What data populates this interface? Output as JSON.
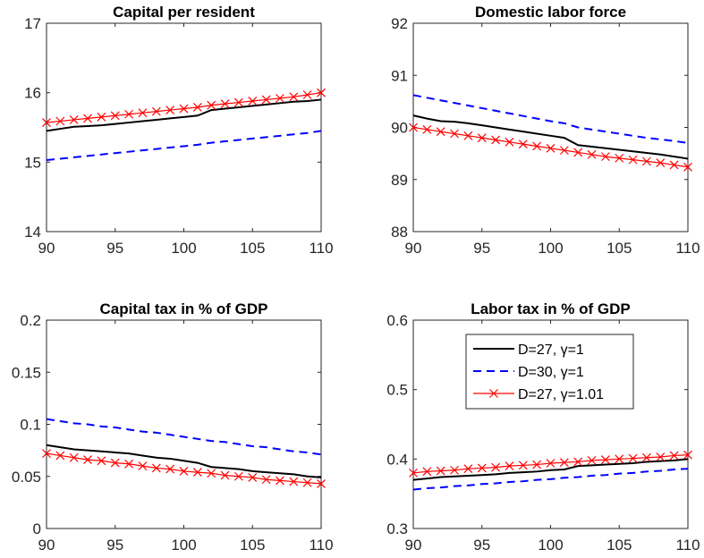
{
  "chart_data": [
    {
      "type": "line",
      "title": "Capital per resident",
      "x": [
        90,
        91,
        92,
        93,
        94,
        95,
        96,
        97,
        98,
        99,
        100,
        101,
        102,
        103,
        104,
        105,
        106,
        107,
        108,
        109,
        110
      ],
      "xlim": [
        90,
        110
      ],
      "xticks": [
        90,
        95,
        100,
        105,
        110
      ],
      "ylim": [
        14,
        17
      ],
      "yticks": [
        14,
        15,
        16,
        17
      ],
      "series": [
        {
          "name": "D=27, γ=1",
          "values": [
            15.45,
            15.48,
            15.51,
            15.52,
            15.53,
            15.55,
            15.57,
            15.59,
            15.61,
            15.63,
            15.65,
            15.67,
            15.75,
            15.77,
            15.79,
            15.81,
            15.83,
            15.85,
            15.87,
            15.88,
            15.9
          ]
        },
        {
          "name": "D=30, γ=1",
          "values": [
            15.03,
            15.05,
            15.07,
            15.09,
            15.11,
            15.13,
            15.15,
            15.17,
            15.19,
            15.21,
            15.23,
            15.25,
            15.28,
            15.3,
            15.32,
            15.34,
            15.36,
            15.38,
            15.4,
            15.42,
            15.45
          ]
        },
        {
          "name": "D=27, γ=1.01",
          "values": [
            15.57,
            15.59,
            15.61,
            15.63,
            15.65,
            15.67,
            15.69,
            15.71,
            15.73,
            15.75,
            15.77,
            15.79,
            15.82,
            15.84,
            15.86,
            15.88,
            15.9,
            15.92,
            15.94,
            15.97,
            16.0
          ]
        }
      ]
    },
    {
      "type": "line",
      "title": "Domestic labor force",
      "x": [
        90,
        91,
        92,
        93,
        94,
        95,
        96,
        97,
        98,
        99,
        100,
        101,
        102,
        103,
        104,
        105,
        106,
        107,
        108,
        109,
        110
      ],
      "xlim": [
        90,
        110
      ],
      "xticks": [
        90,
        95,
        100,
        105,
        110
      ],
      "ylim": [
        88,
        92
      ],
      "yticks": [
        88,
        89,
        90,
        91,
        92
      ],
      "series": [
        {
          "name": "D=27, γ=1",
          "values": [
            90.23,
            90.17,
            90.12,
            90.11,
            90.08,
            90.04,
            90.0,
            89.96,
            89.92,
            89.88,
            89.84,
            89.8,
            89.66,
            89.63,
            89.6,
            89.57,
            89.54,
            89.51,
            89.48,
            89.44,
            89.4
          ]
        },
        {
          "name": "D=30, γ=1",
          "values": [
            90.62,
            90.57,
            90.52,
            90.47,
            90.42,
            90.37,
            90.32,
            90.27,
            90.22,
            90.17,
            90.12,
            90.08,
            90.0,
            89.96,
            89.92,
            89.88,
            89.84,
            89.8,
            89.77,
            89.74,
            89.7
          ]
        },
        {
          "name": "D=27, γ=1.01",
          "values": [
            90.0,
            89.96,
            89.92,
            89.88,
            89.84,
            89.8,
            89.76,
            89.72,
            89.68,
            89.64,
            89.6,
            89.56,
            89.52,
            89.48,
            89.44,
            89.41,
            89.38,
            89.35,
            89.32,
            89.28,
            89.24
          ]
        }
      ]
    },
    {
      "type": "line",
      "title": "Capital tax in % of GDP",
      "x": [
        90,
        91,
        92,
        93,
        94,
        95,
        96,
        97,
        98,
        99,
        100,
        101,
        102,
        103,
        104,
        105,
        106,
        107,
        108,
        109,
        110
      ],
      "xlim": [
        90,
        110
      ],
      "xticks": [
        90,
        95,
        100,
        105,
        110
      ],
      "ylim": [
        0,
        0.2
      ],
      "yticks": [
        0,
        0.05,
        0.1,
        0.15,
        0.2
      ],
      "series": [
        {
          "name": "D=27, γ=1",
          "values": [
            0.08,
            0.078,
            0.076,
            0.075,
            0.074,
            0.073,
            0.072,
            0.07,
            0.068,
            0.067,
            0.065,
            0.063,
            0.059,
            0.058,
            0.057,
            0.055,
            0.054,
            0.053,
            0.052,
            0.05,
            0.049
          ]
        },
        {
          "name": "D=30, γ=1",
          "values": [
            0.105,
            0.103,
            0.101,
            0.1,
            0.098,
            0.097,
            0.095,
            0.093,
            0.092,
            0.09,
            0.088,
            0.086,
            0.084,
            0.083,
            0.081,
            0.079,
            0.078,
            0.076,
            0.074,
            0.073,
            0.071
          ]
        },
        {
          "name": "D=27, γ=1.01",
          "values": [
            0.072,
            0.07,
            0.068,
            0.066,
            0.065,
            0.063,
            0.062,
            0.06,
            0.058,
            0.057,
            0.055,
            0.054,
            0.053,
            0.051,
            0.05,
            0.049,
            0.047,
            0.046,
            0.045,
            0.044,
            0.043
          ]
        }
      ]
    },
    {
      "type": "line",
      "title": "Labor tax in % of GDP",
      "x": [
        90,
        91,
        92,
        93,
        94,
        95,
        96,
        97,
        98,
        99,
        100,
        101,
        102,
        103,
        104,
        105,
        106,
        107,
        108,
        109,
        110
      ],
      "xlim": [
        90,
        110
      ],
      "xticks": [
        90,
        95,
        100,
        105,
        110
      ],
      "ylim": [
        0.3,
        0.6
      ],
      "yticks": [
        0.3,
        0.4,
        0.5,
        0.6
      ],
      "legend": {
        "placement": "top-center",
        "entries": [
          "D=27, γ=1",
          "D=30, γ=1",
          "D=27, γ=1.01"
        ]
      },
      "series": [
        {
          "name": "D=27, γ=1",
          "values": [
            0.37,
            0.372,
            0.374,
            0.375,
            0.376,
            0.377,
            0.378,
            0.38,
            0.381,
            0.382,
            0.384,
            0.385,
            0.39,
            0.391,
            0.392,
            0.393,
            0.394,
            0.396,
            0.397,
            0.398,
            0.4
          ]
        },
        {
          "name": "D=30, γ=1",
          "values": [
            0.356,
            0.358,
            0.359,
            0.361,
            0.362,
            0.364,
            0.365,
            0.367,
            0.368,
            0.37,
            0.371,
            0.373,
            0.374,
            0.376,
            0.377,
            0.379,
            0.38,
            0.382,
            0.383,
            0.385,
            0.386
          ]
        },
        {
          "name": "D=27, γ=1.01",
          "values": [
            0.38,
            0.382,
            0.383,
            0.384,
            0.386,
            0.387,
            0.388,
            0.39,
            0.391,
            0.392,
            0.394,
            0.395,
            0.396,
            0.398,
            0.399,
            0.4,
            0.401,
            0.402,
            0.403,
            0.405,
            0.406
          ]
        }
      ]
    }
  ],
  "styles": {
    "series_colors": [
      "#000000",
      "#0000ff",
      "#ff0000"
    ]
  }
}
